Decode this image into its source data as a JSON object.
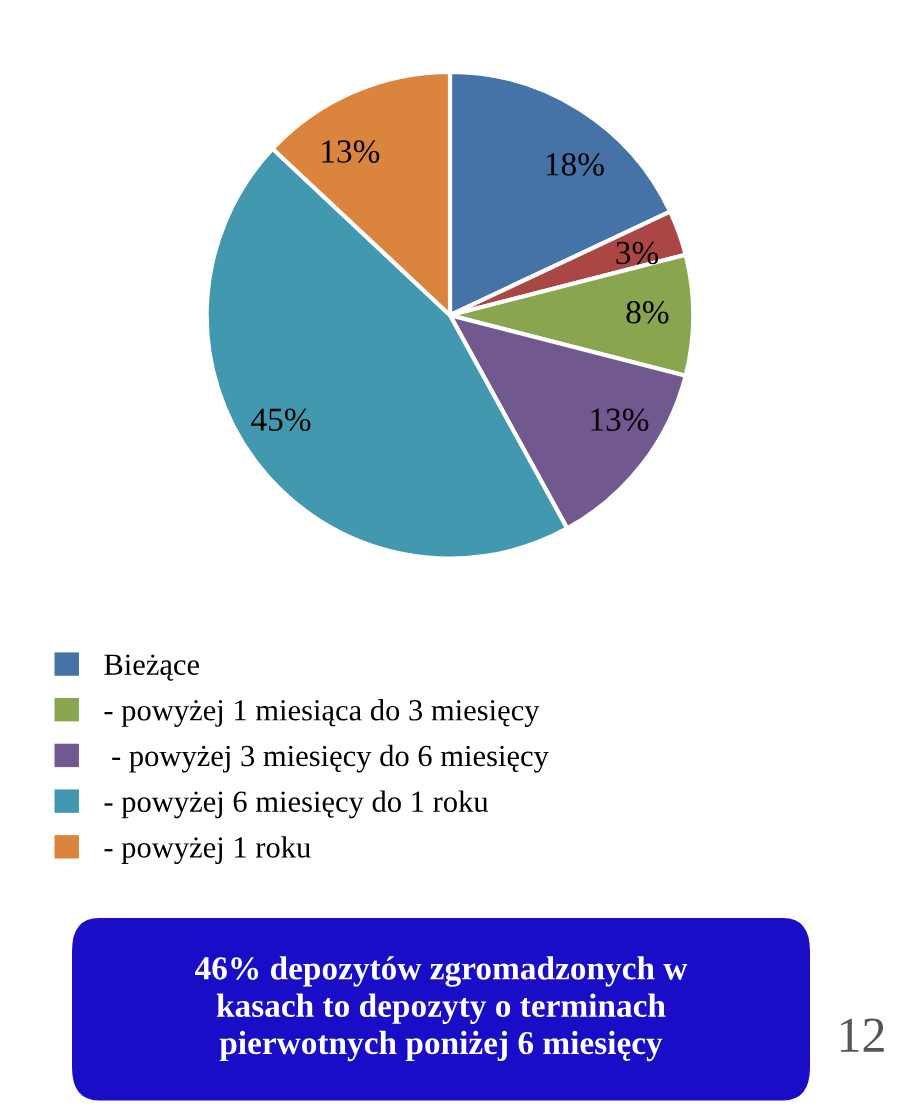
{
  "chart_data": {
    "type": "pie",
    "categories": [
      "Bieżące",
      null,
      "- powyżej 1 miesiąca do 3 miesięcy",
      " - powyżej 3 miesięcy do 6 miesięcy",
      "- powyżej 6 miesięcy do 1 roku",
      "- powyżej 1 roku"
    ],
    "values": [
      18,
      3,
      8,
      13,
      45,
      13
    ],
    "value_labels": [
      "18%",
      "3%",
      "8%",
      "13%",
      "45%",
      "13%"
    ],
    "colors": [
      "#4572a7",
      "#aa4643",
      "#89a54e",
      "#71588f",
      "#4198af",
      "#db843d"
    ],
    "legend": "bottom left",
    "annotations": [
      "46% depozytów zgromadzonych w\nkasach to depozyty o terminach\npierwotnych poniżej 6 miesięcy",
      "12"
    ]
  }
}
